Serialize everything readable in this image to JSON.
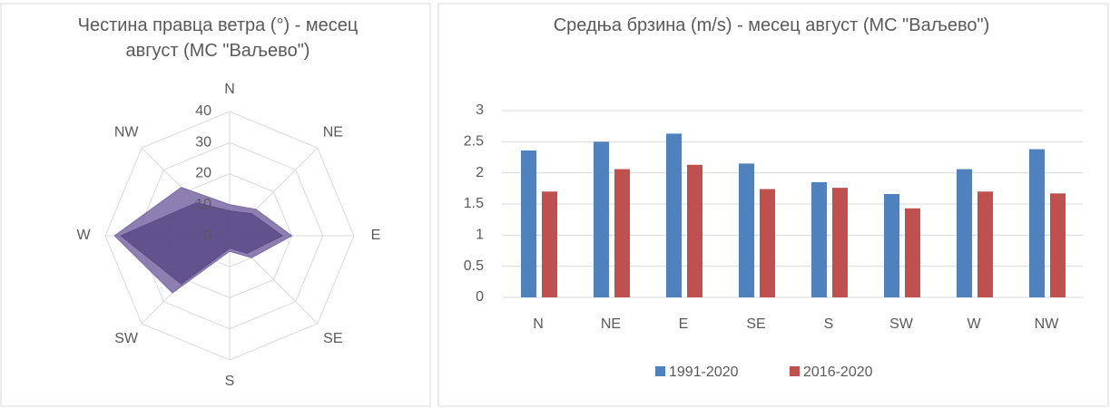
{
  "chart_data": [
    {
      "type": "radar",
      "title": "Честина правца ветра (°) - месец август (МС \"Ваљево\")",
      "categories": [
        "N",
        "NE",
        "E",
        "SE",
        "S",
        "SW",
        "W",
        "NW"
      ],
      "series": [
        {
          "color": "#7a68a6",
          "values": [
            10,
            12,
            20,
            10,
            5,
            26,
            37,
            22
          ]
        },
        {
          "color": "#5b4a86",
          "values": [
            8,
            10,
            17,
            8,
            4,
            22,
            35,
            15
          ]
        }
      ],
      "ylim": [
        0,
        40
      ],
      "yticks": [
        0,
        10,
        20,
        30,
        40
      ],
      "grid": true
    },
    {
      "type": "bar",
      "title": "Средња брзина (m/s) - месец август (МС \"Ваљево\")",
      "categories": [
        "N",
        "NE",
        "E",
        "SE",
        "S",
        "SW",
        "W",
        "NW"
      ],
      "series": [
        {
          "name": "1991-2020",
          "color": "#4f81bd",
          "values": [
            2.36,
            2.5,
            2.63,
            2.15,
            1.85,
            1.66,
            2.06,
            2.38
          ]
        },
        {
          "name": "2016-2020",
          "color": "#c0504d",
          "values": [
            1.7,
            2.06,
            2.13,
            1.74,
            1.76,
            1.43,
            1.7,
            1.67
          ]
        }
      ],
      "ylim": [
        0,
        3
      ],
      "yticks": [
        0,
        0.5,
        1,
        1.5,
        2,
        2.5,
        3
      ],
      "grid": true,
      "legend": "bottom"
    }
  ]
}
